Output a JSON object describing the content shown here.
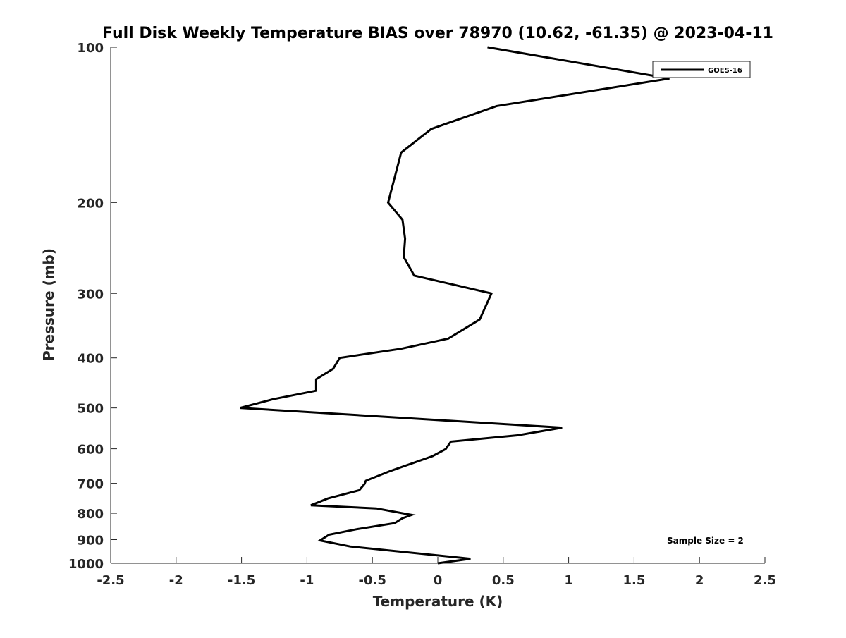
{
  "chart_data": {
    "type": "line",
    "title": "Full Disk Weekly Temperature BIAS over 78970 (10.62, -61.35) @ 2023-04-11",
    "xlabel": "Temperature (K)",
    "ylabel": "Pressure (mb)",
    "xlim": [
      -2.5,
      2.5
    ],
    "ylim": [
      100,
      1000
    ],
    "yscale": "log",
    "yreversed": true,
    "grid": false,
    "legend_position": "top-right",
    "xticks": [
      -2.5,
      -2,
      -1.5,
      -1,
      -0.5,
      0,
      0.5,
      1,
      1.5,
      2,
      2.5
    ],
    "xtick_labels": [
      "-2.5",
      "-2",
      "-1.5",
      "-1",
      "-0.5",
      "0",
      "0.5",
      "1",
      "1.5",
      "2",
      "2.5"
    ],
    "yticks": [
      100,
      200,
      300,
      400,
      500,
      600,
      700,
      800,
      900,
      1000
    ],
    "ytick_labels": [
      "100",
      "200",
      "300",
      "400",
      "500",
      "600",
      "700",
      "800",
      "900",
      "1000"
    ],
    "annotation": "Sample Size = 2",
    "series": [
      {
        "name": "GOES-16",
        "color": "#000000",
        "points": [
          [
            0.38,
            100
          ],
          [
            1.77,
            115
          ],
          [
            0.45,
            130
          ],
          [
            -0.05,
            144
          ],
          [
            -0.28,
            160
          ],
          [
            -0.38,
            200
          ],
          [
            -0.27,
            216
          ],
          [
            -0.25,
            235
          ],
          [
            -0.26,
            255
          ],
          [
            -0.18,
            277
          ],
          [
            0.41,
            300
          ],
          [
            0.32,
            337
          ],
          [
            0.08,
            367
          ],
          [
            -0.28,
            384
          ],
          [
            -0.75,
            400
          ],
          [
            -0.8,
            420
          ],
          [
            -0.93,
            440
          ],
          [
            -0.93,
            463
          ],
          [
            -1.26,
            481
          ],
          [
            -1.51,
            500
          ],
          [
            0.95,
            546
          ],
          [
            0.61,
            565
          ],
          [
            0.1,
            581
          ],
          [
            0.06,
            601
          ],
          [
            -0.04,
            620
          ],
          [
            -0.36,
            662
          ],
          [
            -0.55,
            692
          ],
          [
            -0.56,
            702
          ],
          [
            -0.6,
            722
          ],
          [
            -0.84,
            749
          ],
          [
            -0.97,
            772
          ],
          [
            -0.47,
            783
          ],
          [
            -0.2,
            806
          ],
          [
            -0.27,
            818
          ],
          [
            -0.33,
            836
          ],
          [
            -0.62,
            859
          ],
          [
            -0.83,
            880
          ],
          [
            -0.9,
            903
          ],
          [
            -0.67,
            928
          ],
          [
            0.25,
            980
          ],
          [
            0.0,
            1000
          ]
        ]
      }
    ]
  }
}
